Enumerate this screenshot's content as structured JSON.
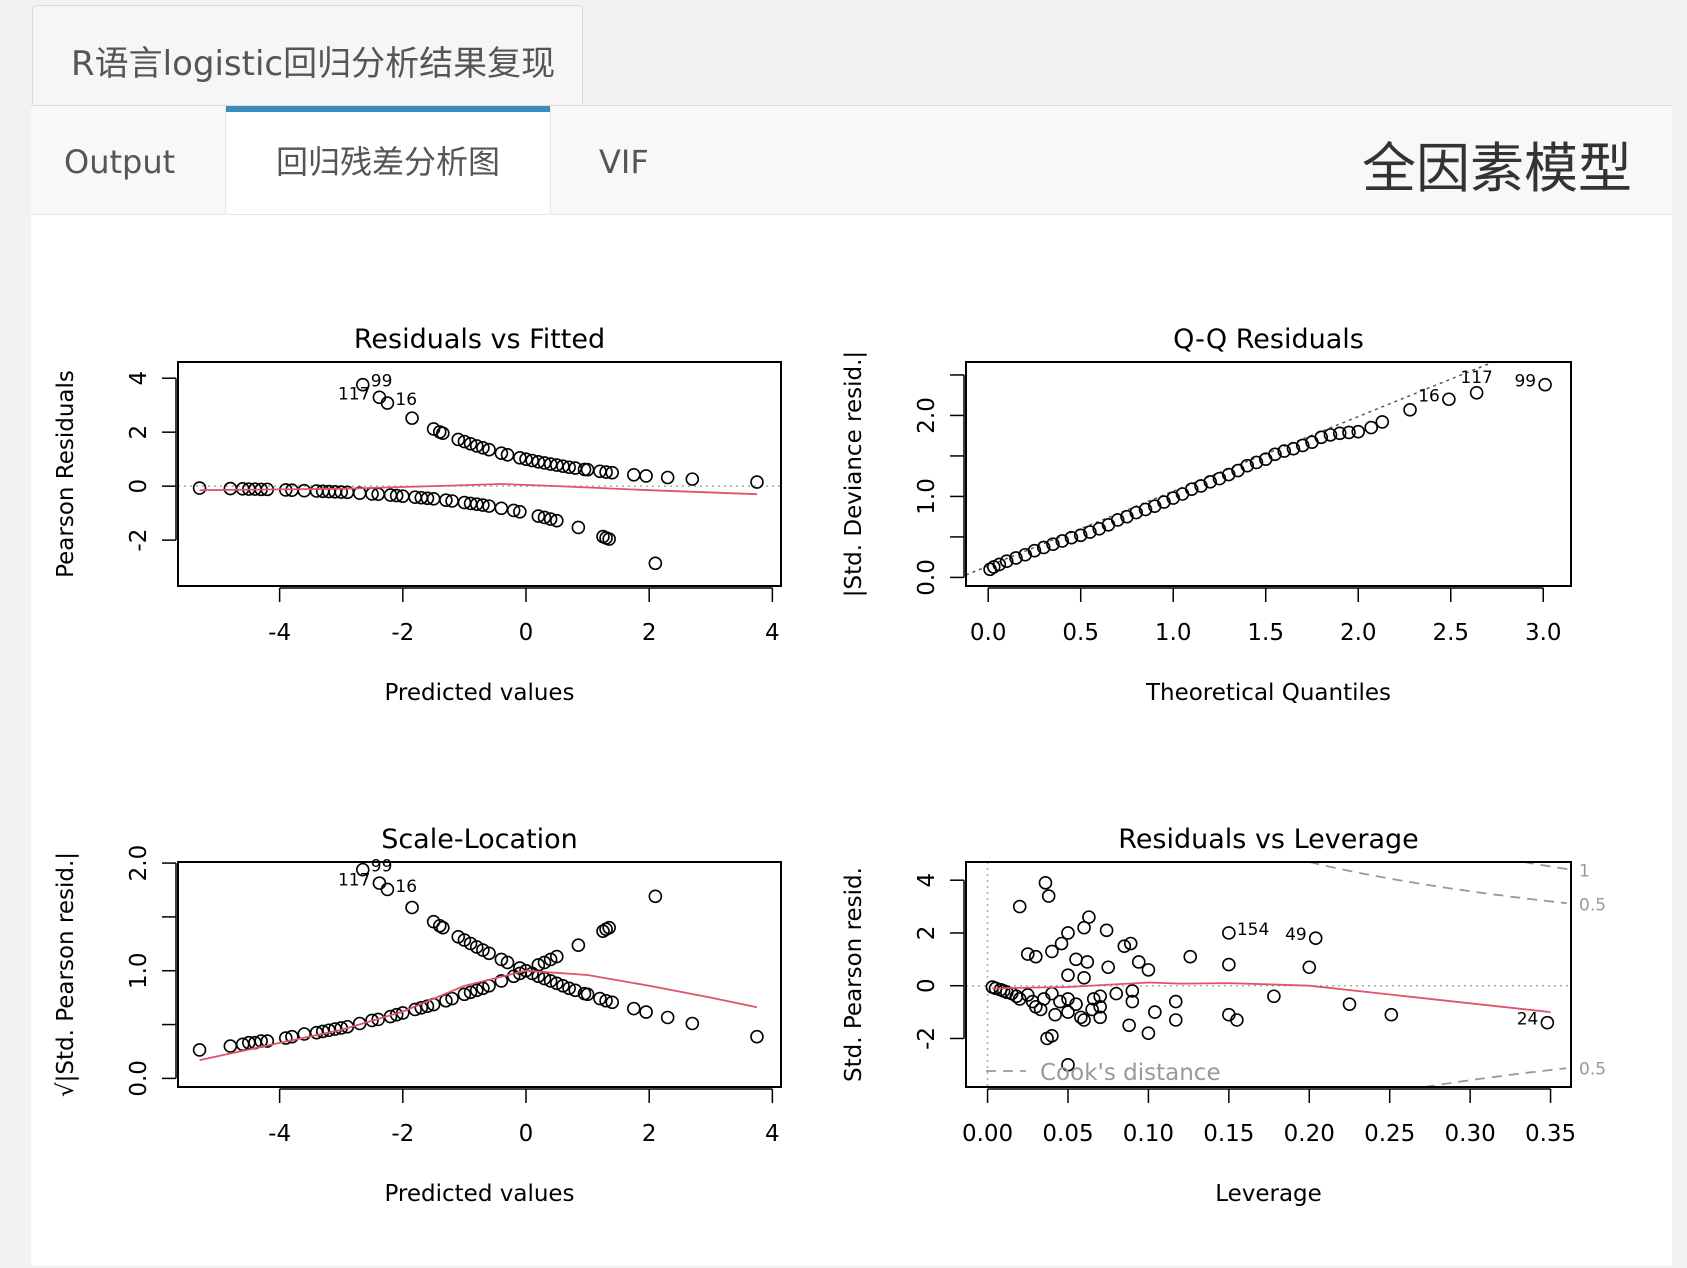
{
  "app": {
    "title": "R语言logistic回归分析结果复现"
  },
  "tabs": [
    {
      "label": "Output"
    },
    {
      "label": "回归残差分析图"
    },
    {
      "label": "VIF"
    }
  ],
  "model_title": "全因素模型",
  "colors": {
    "accent": "#3c8dbc",
    "smoother": "#df536b",
    "points": "#000000",
    "reference": "#999999"
  },
  "chart_data": [
    {
      "type": "scatter",
      "title": "Residuals vs Fitted",
      "xlabel": "Predicted values",
      "ylabel": "Pearson Residuals",
      "xlim": [
        -5.65,
        4.14
      ],
      "ylim": [
        -3.7,
        4.6
      ],
      "xticks": [
        -4,
        -2,
        0,
        2,
        4
      ],
      "xtick_labels": [
        "-4",
        "-2",
        "0",
        "2",
        "4"
      ],
      "yticks": [
        -2,
        0,
        2,
        4
      ],
      "ytick_labels": [
        "-2",
        "0",
        "2",
        "4"
      ],
      "hline": 0,
      "points": [
        [
          -2.65,
          3.76
        ],
        [
          -2.38,
          3.29
        ],
        [
          -2.25,
          3.08
        ],
        [
          -1.85,
          2.52
        ],
        [
          -1.5,
          2.12
        ],
        [
          -1.4,
          2.01
        ],
        [
          -1.35,
          1.96
        ],
        [
          -1.1,
          1.73
        ],
        [
          -1.0,
          1.65
        ],
        [
          -0.9,
          1.57
        ],
        [
          -0.8,
          1.49
        ],
        [
          -0.7,
          1.42
        ],
        [
          -0.6,
          1.35
        ],
        [
          -0.4,
          1.22
        ],
        [
          -0.3,
          1.16
        ],
        [
          -0.1,
          1.05
        ],
        [
          0,
          1.0
        ],
        [
          0.1,
          0.95
        ],
        [
          0.2,
          0.9
        ],
        [
          0.3,
          0.86
        ],
        [
          0.4,
          0.82
        ],
        [
          0.5,
          0.78
        ],
        [
          0.6,
          0.74
        ],
        [
          0.7,
          0.7
        ],
        [
          0.8,
          0.67
        ],
        [
          0.95,
          0.62
        ],
        [
          1.0,
          0.61
        ],
        [
          1.2,
          0.55
        ],
        [
          1.3,
          0.52
        ],
        [
          1.4,
          0.5
        ],
        [
          1.75,
          0.42
        ],
        [
          1.95,
          0.38
        ],
        [
          2.3,
          0.32
        ],
        [
          2.7,
          0.26
        ],
        [
          3.75,
          0.15
        ],
        [
          -5.3,
          -0.07
        ],
        [
          -4.8,
          -0.09
        ],
        [
          -4.6,
          -0.1
        ],
        [
          -4.5,
          -0.11
        ],
        [
          -4.4,
          -0.11
        ],
        [
          -4.3,
          -0.12
        ],
        [
          -4.2,
          -0.12
        ],
        [
          -3.9,
          -0.14
        ],
        [
          -3.8,
          -0.15
        ],
        [
          -3.6,
          -0.17
        ],
        [
          -3.4,
          -0.18
        ],
        [
          -3.3,
          -0.19
        ],
        [
          -3.2,
          -0.2
        ],
        [
          -3.1,
          -0.21
        ],
        [
          -3.0,
          -0.22
        ],
        [
          -2.9,
          -0.23
        ],
        [
          -2.7,
          -0.26
        ],
        [
          -2.5,
          -0.29
        ],
        [
          -2.4,
          -0.3
        ],
        [
          -2.2,
          -0.33
        ],
        [
          -2.1,
          -0.35
        ],
        [
          -2.0,
          -0.37
        ],
        [
          -1.8,
          -0.41
        ],
        [
          -1.7,
          -0.43
        ],
        [
          -1.6,
          -0.45
        ],
        [
          -1.5,
          -0.47
        ],
        [
          -1.3,
          -0.52
        ],
        [
          -1.2,
          -0.55
        ],
        [
          -1.0,
          -0.61
        ],
        [
          -0.9,
          -0.64
        ],
        [
          -0.8,
          -0.67
        ],
        [
          -0.7,
          -0.7
        ],
        [
          -0.6,
          -0.74
        ],
        [
          -0.4,
          -0.82
        ],
        [
          -0.2,
          -0.9
        ],
        [
          -0.1,
          -0.95
        ],
        [
          0.2,
          -1.11
        ],
        [
          0.3,
          -1.16
        ],
        [
          0.4,
          -1.22
        ],
        [
          0.5,
          -1.28
        ],
        [
          0.85,
          -1.53
        ],
        [
          1.25,
          -1.87
        ],
        [
          1.3,
          -1.92
        ],
        [
          1.35,
          -1.96
        ],
        [
          2.1,
          -2.86
        ]
      ],
      "labels": [
        {
          "text": "99",
          "x": -2.65,
          "y": 3.76
        },
        {
          "text": "117",
          "x": -2.38,
          "y": 3.29
        },
        {
          "text": "16",
          "x": -2.25,
          "y": 3.08
        }
      ],
      "smoother": [
        [
          -5.3,
          -0.15
        ],
        [
          -3,
          -0.1
        ],
        [
          -1.5,
          0.0
        ],
        [
          -0.4,
          0.08
        ],
        [
          0.5,
          0.0
        ],
        [
          2,
          -0.15
        ],
        [
          3.75,
          -0.3
        ]
      ]
    },
    {
      "type": "scatter",
      "title": "Q-Q Residuals",
      "xlabel": "Theoretical Quantiles",
      "ylabel": "|Std. Deviance resid.|",
      "xlim": [
        -0.12,
        3.15
      ],
      "ylim": [
        -0.106,
        2.66
      ],
      "xticks": [
        0,
        0.5,
        1.0,
        1.5,
        2.0,
        2.5,
        3.0
      ],
      "xtick_labels": [
        "0.0",
        "0.5",
        "1.0",
        "1.5",
        "2.0",
        "2.5",
        "3.0"
      ],
      "yticks": [
        0,
        0.5,
        1.0,
        1.5,
        2.0,
        2.5
      ],
      "ytick_labels": [
        "0.0",
        "",
        "1.0",
        "",
        "2.0",
        ""
      ],
      "refline": [
        [
          -0.16,
          0.03
        ],
        [
          2.73,
          2.66
        ]
      ],
      "points": [
        [
          0.01,
          0.1
        ],
        [
          0.03,
          0.13
        ],
        [
          0.06,
          0.16
        ],
        [
          0.1,
          0.2
        ],
        [
          0.15,
          0.24
        ],
        [
          0.2,
          0.28
        ],
        [
          0.25,
          0.33
        ],
        [
          0.3,
          0.37
        ],
        [
          0.35,
          0.41
        ],
        [
          0.4,
          0.45
        ],
        [
          0.45,
          0.49
        ],
        [
          0.5,
          0.52
        ],
        [
          0.55,
          0.56
        ],
        [
          0.6,
          0.6
        ],
        [
          0.65,
          0.65
        ],
        [
          0.7,
          0.71
        ],
        [
          0.75,
          0.75
        ],
        [
          0.8,
          0.8
        ],
        [
          0.85,
          0.84
        ],
        [
          0.9,
          0.88
        ],
        [
          0.95,
          0.93
        ],
        [
          1.0,
          0.98
        ],
        [
          1.05,
          1.03
        ],
        [
          1.1,
          1.09
        ],
        [
          1.15,
          1.13
        ],
        [
          1.2,
          1.18
        ],
        [
          1.25,
          1.22
        ],
        [
          1.3,
          1.27
        ],
        [
          1.35,
          1.32
        ],
        [
          1.4,
          1.38
        ],
        [
          1.45,
          1.42
        ],
        [
          1.5,
          1.46
        ],
        [
          1.55,
          1.52
        ],
        [
          1.6,
          1.56
        ],
        [
          1.65,
          1.59
        ],
        [
          1.7,
          1.63
        ],
        [
          1.75,
          1.67
        ],
        [
          1.8,
          1.73
        ],
        [
          1.85,
          1.76
        ],
        [
          1.9,
          1.78
        ],
        [
          1.95,
          1.79
        ],
        [
          2.0,
          1.8
        ],
        [
          2.07,
          1.85
        ],
        [
          2.13,
          1.92
        ],
        [
          2.28,
          2.07
        ],
        [
          2.49,
          2.2
        ],
        [
          2.64,
          2.28
        ],
        [
          3.01,
          2.38
        ]
      ],
      "labels": [
        {
          "text": "16",
          "x": 2.49,
          "y": 2.2,
          "side": "left"
        },
        {
          "text": "117",
          "x": 2.64,
          "y": 2.28,
          "side": "left"
        },
        {
          "text": "99",
          "x": 3.01,
          "y": 2.38,
          "side": "left"
        }
      ]
    },
    {
      "type": "scatter",
      "title": "Scale-Location",
      "xlabel": "Predicted values",
      "ylabel": "√|Std. Pearson resid.|",
      "xlim": [
        -5.65,
        4.14
      ],
      "ylim": [
        -0.08,
        2.01
      ],
      "xticks": [
        -4,
        -2,
        0,
        2,
        4
      ],
      "xtick_labels": [
        "-4",
        "-2",
        "0",
        "2",
        "4"
      ],
      "yticks": [
        0,
        0.5,
        1.0,
        1.5,
        2.0
      ],
      "ytick_labels": [
        "0.0",
        "",
        "1.0",
        "",
        "2.0"
      ],
      "points_derived_from": "Residuals vs Fitted: y = sqrt(|residual|)",
      "labels": [
        {
          "text": "99",
          "x": -2.65,
          "y": 1.94
        },
        {
          "text": "117",
          "x": -2.38,
          "y": 1.81
        },
        {
          "text": "16",
          "x": -2.25,
          "y": 1.75
        }
      ],
      "smoother": [
        [
          -5.3,
          0.17
        ],
        [
          -4,
          0.33
        ],
        [
          -3,
          0.45
        ],
        [
          -2,
          0.62
        ],
        [
          -1,
          0.86
        ],
        [
          0,
          1.0
        ],
        [
          1,
          0.96
        ],
        [
          2,
          0.86
        ],
        [
          3,
          0.75
        ],
        [
          3.75,
          0.66
        ]
      ]
    },
    {
      "type": "scatter",
      "title": "Residuals vs Leverage",
      "xlabel": "Leverage",
      "ylabel": "Std. Pearson resid.",
      "xlim": [
        -0.0134,
        0.3627
      ],
      "ylim": [
        -3.84,
        4.69
      ],
      "xticks": [
        0,
        0.05,
        0.1,
        0.15,
        0.2,
        0.25,
        0.3,
        0.35
      ],
      "xtick_labels": [
        "0.00",
        "0.05",
        "0.10",
        "0.15",
        "0.20",
        "0.25",
        "0.30",
        "0.35"
      ],
      "yticks": [
        -2,
        0,
        2,
        4
      ],
      "ytick_labels": [
        "-2",
        "0",
        "2",
        "4"
      ],
      "hline": 0,
      "vline": 0,
      "points": [
        [
          0.02,
          3.0
        ],
        [
          0.036,
          3.9
        ],
        [
          0.038,
          3.4
        ],
        [
          0.15,
          2.0
        ],
        [
          0.204,
          1.8
        ],
        [
          0.15,
          0.8
        ],
        [
          0.2,
          0.7
        ],
        [
          0.348,
          -1.4
        ],
        [
          0.178,
          -0.4
        ],
        [
          0.225,
          -0.7
        ],
        [
          0.251,
          -1.1
        ],
        [
          0.15,
          -1.1
        ],
        [
          0.155,
          -1.3
        ],
        [
          0.1,
          -1.8
        ],
        [
          0.088,
          -1.5
        ],
        [
          0.05,
          -3.0
        ],
        [
          0.04,
          -1.9
        ],
        [
          0.037,
          -2.0
        ],
        [
          0.117,
          -0.6
        ],
        [
          0.117,
          -1.3
        ],
        [
          0.104,
          -1.0
        ],
        [
          0.094,
          0.9
        ],
        [
          0.1,
          0.6
        ],
        [
          0.126,
          1.1
        ],
        [
          0.085,
          1.5
        ],
        [
          0.089,
          1.6
        ],
        [
          0.063,
          2.6
        ],
        [
          0.06,
          2.2
        ],
        [
          0.074,
          2.1
        ],
        [
          0.05,
          2.0
        ],
        [
          0.046,
          1.6
        ],
        [
          0.04,
          1.3
        ],
        [
          0.03,
          1.1
        ],
        [
          0.025,
          1.2
        ],
        [
          0.055,
          1.0
        ],
        [
          0.062,
          0.9
        ],
        [
          0.075,
          0.7
        ],
        [
          0.05,
          0.4
        ],
        [
          0.06,
          0.3
        ],
        [
          0.08,
          -0.3
        ],
        [
          0.09,
          -0.6
        ],
        [
          0.07,
          -0.8
        ],
        [
          0.06,
          -1.3
        ],
        [
          0.07,
          -1.2
        ],
        [
          0.05,
          -1.0
        ],
        [
          0.03,
          -0.8
        ],
        [
          0.02,
          -0.5
        ],
        [
          0.015,
          -0.3
        ],
        [
          0.01,
          -0.2
        ],
        [
          0.005,
          -0.1
        ],
        [
          0.003,
          -0.05
        ],
        [
          0.008,
          -0.15
        ],
        [
          0.012,
          -0.25
        ],
        [
          0.025,
          -0.35
        ],
        [
          0.035,
          -0.5
        ],
        [
          0.045,
          -0.6
        ],
        [
          0.055,
          -0.7
        ],
        [
          0.065,
          -0.9
        ],
        [
          0.042,
          -1.1
        ],
        [
          0.033,
          -0.9
        ],
        [
          0.028,
          -0.6
        ],
        [
          0.018,
          -0.4
        ],
        [
          0.04,
          -0.3
        ],
        [
          0.05,
          -0.5
        ],
        [
          0.07,
          -0.4
        ],
        [
          0.09,
          -0.2
        ],
        [
          0.058,
          -1.2
        ],
        [
          0.066,
          -0.5
        ]
      ],
      "labels": [
        {
          "text": "154",
          "x": 0.15,
          "y": 2.0,
          "side": "right"
        },
        {
          "text": "49",
          "x": 0.204,
          "y": 1.8,
          "side": "left"
        },
        {
          "text": "24",
          "x": 0.348,
          "y": -1.4,
          "side": "left"
        }
      ],
      "smoother": [
        [
          0.003,
          -0.1
        ],
        [
          0.05,
          -0.05
        ],
        [
          0.1,
          0.12
        ],
        [
          0.12,
          0.08
        ],
        [
          0.15,
          0.1
        ],
        [
          0.2,
          0.0
        ],
        [
          0.35,
          -1.0
        ]
      ],
      "cooks_levels": [
        {
          "level": 0.5,
          "label": "0.5"
        },
        {
          "level": 1,
          "label": "1"
        }
      ],
      "cooks_legend": "Cook's distance"
    }
  ]
}
